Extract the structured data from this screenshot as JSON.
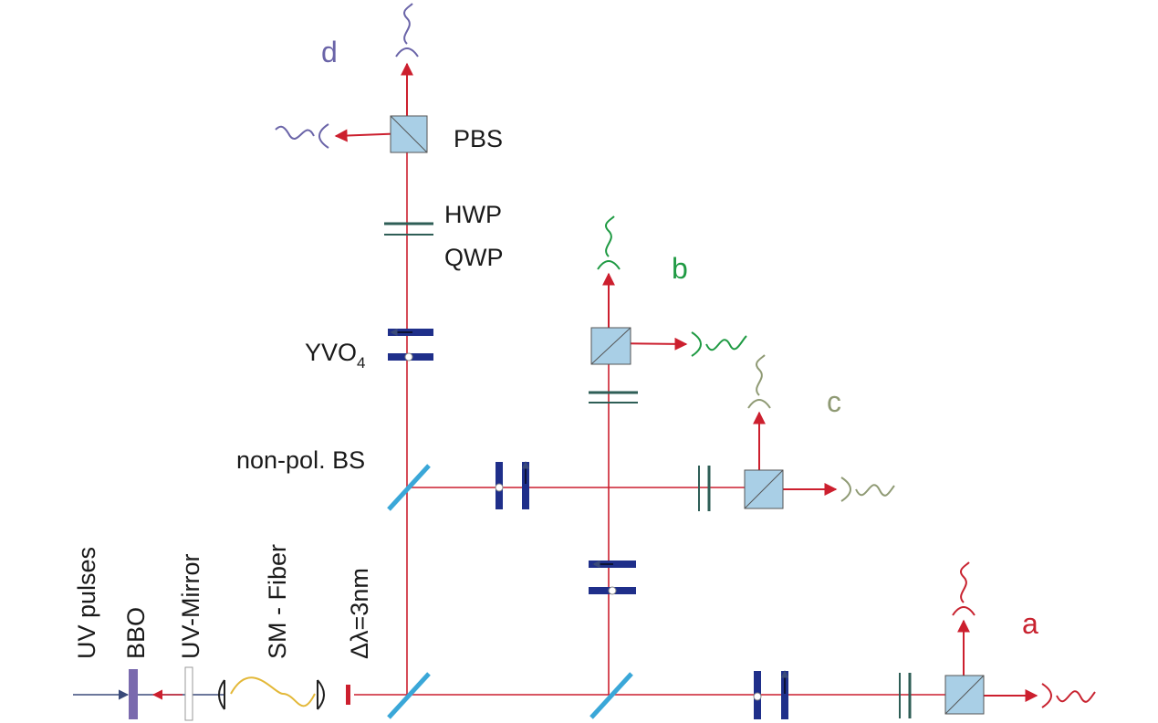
{
  "labels": {
    "pbs": "PBS",
    "hwp": "HWP",
    "qwp": "QWP",
    "yvo4_main": "YVO",
    "yvo4_sub": "4",
    "nonpol_bs": "non-pol.  BS",
    "uv_pulses": "UV pulses",
    "bbo": "BBO",
    "uv_mirror": "UV-Mirror",
    "sm_fiber": "SM - Fiber",
    "delta_lambda": "Δλ=3nm"
  },
  "outputs": {
    "a": "a",
    "b": "b",
    "c": "c",
    "d": "d"
  },
  "colors": {
    "beam": "#cc1f2e",
    "crystal": "#1f2f8a",
    "waveplate": "#2e5e56",
    "beamsplitter": "#3aa7d8",
    "pbs_fill": "#a9cfe6",
    "out_a": "#c8222f",
    "out_b": "#1f9a43",
    "out_c": "#8f9a74",
    "out_d": "#6a64a8",
    "bbo": "#7a6aae",
    "fiber": "#e3b838"
  }
}
